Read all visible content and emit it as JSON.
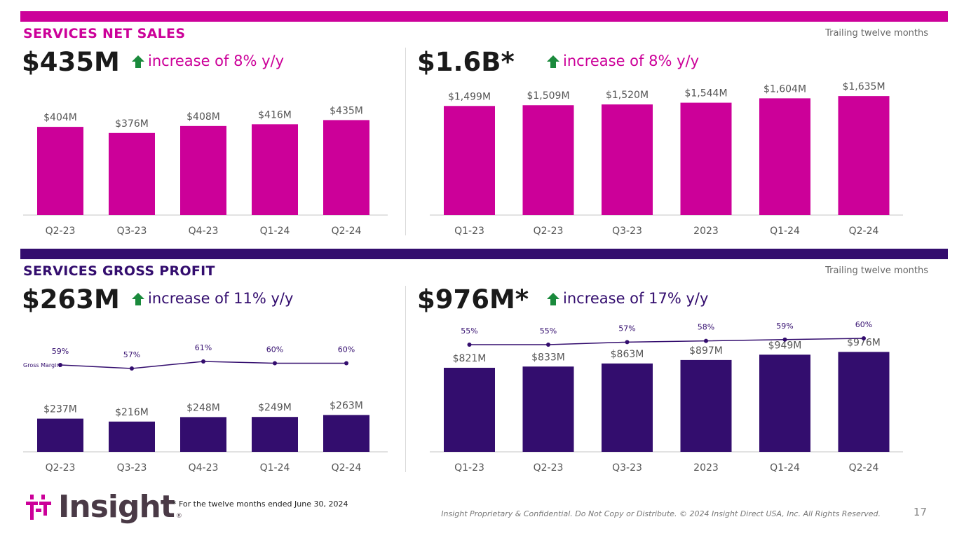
{
  "colors": {
    "sales": "#cc0099",
    "gp": "#330d6e",
    "arrow": "#1a8a3c"
  },
  "sections": {
    "sales": {
      "title": "SERVICES NET SALES",
      "ttm": "Trailing twelve months"
    },
    "gp": {
      "title": "SERVICES GROSS PROFIT",
      "ttm": "Trailing twelve months"
    }
  },
  "headlines": {
    "sales_q": {
      "value": "$435M",
      "change": "increase of 8% y/y"
    },
    "sales_ttm": {
      "value": "$1.6B*",
      "change": "increase of 8% y/y"
    },
    "gp_q": {
      "value": "$263M",
      "change": "increase of 11% y/y"
    },
    "gp_ttm": {
      "value": "$976M*",
      "change": "increase of 17% y/y"
    }
  },
  "chart_data": [
    {
      "id": "sales_q",
      "type": "bar",
      "categories": [
        "Q2-23",
        "Q3-23",
        "Q4-23",
        "Q1-24",
        "Q2-24"
      ],
      "values": [
        404,
        376,
        408,
        416,
        435
      ],
      "labels": [
        "$404M",
        "$376M",
        "$408M",
        "$416M",
        "$435M"
      ],
      "ylim": [
        0,
        600
      ]
    },
    {
      "id": "sales_ttm",
      "type": "bar",
      "categories": [
        "Q1-23",
        "Q2-23",
        "Q3-23",
        "2023",
        "Q1-24",
        "Q2-24"
      ],
      "values": [
        1499,
        1509,
        1520,
        1544,
        1604,
        1635
      ],
      "labels": [
        "$1,499M",
        "$1,509M",
        "$1,520M",
        "$1,544M",
        "$1,604M",
        "$1,635M"
      ],
      "ylim": [
        0,
        1800
      ]
    },
    {
      "id": "gp_q",
      "type": "bar",
      "categories": [
        "Q2-23",
        "Q3-23",
        "Q4-23",
        "Q1-24",
        "Q2-24"
      ],
      "values": [
        237,
        216,
        248,
        249,
        263
      ],
      "labels": [
        "$237M",
        "$216M",
        "$248M",
        "$249M",
        "$263M"
      ],
      "ylim": [
        0,
        950
      ],
      "line": {
        "name": "Gross Margin",
        "values": [
          59,
          57,
          61,
          60,
          60
        ],
        "labels": [
          "59%",
          "57%",
          "61%",
          "60%",
          "60%"
        ]
      }
    },
    {
      "id": "gp_ttm",
      "type": "bar",
      "categories": [
        "Q1-23",
        "Q2-23",
        "Q3-23",
        "2023",
        "Q1-24",
        "Q2-24"
      ],
      "values": [
        821,
        833,
        863,
        897,
        949,
        976
      ],
      "labels": [
        "$821M",
        "$833M",
        "$863M",
        "$897M",
        "$949M",
        "$976M"
      ],
      "ylim": [
        0,
        1300
      ],
      "line": {
        "name": "",
        "values": [
          55,
          55,
          57,
          58,
          59,
          60
        ],
        "labels": [
          "55%",
          "55%",
          "57%",
          "58%",
          "59%",
          "60%"
        ]
      }
    }
  ],
  "footer": {
    "logo_text": "Insight",
    "logo_reg": "®",
    "footnote": "* For the twelve months ended June 30, 2024",
    "copyright": "Insight Proprietary & Confidential. Do Not Copy or Distribute. © 2024 Insight Direct USA, Inc. All Rights Reserved.",
    "page_number": "17"
  }
}
